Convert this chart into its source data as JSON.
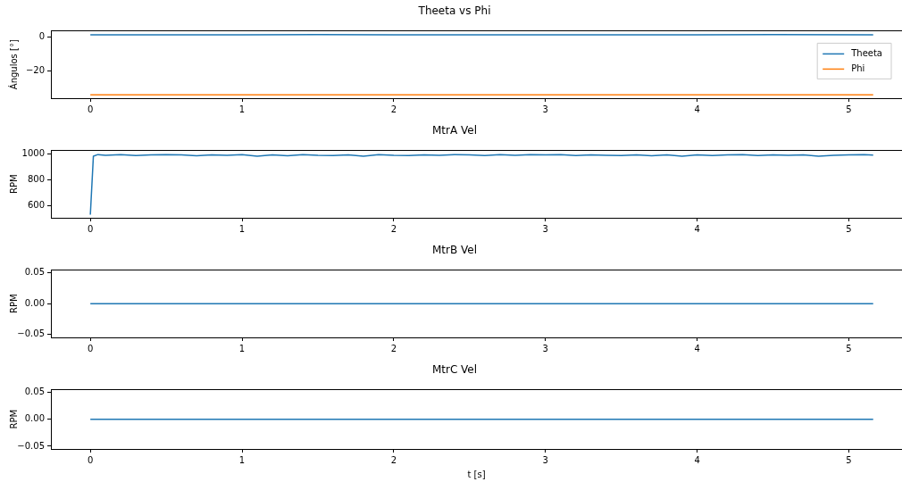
{
  "chart_data": [
    {
      "type": "line",
      "title": "Theeta vs Phi",
      "ylabel": "Ángulos [°]",
      "xlim": [
        -0.26,
        5.35
      ],
      "xticks": [
        0,
        1,
        2,
        3,
        4,
        5
      ],
      "ylim": [
        -36.6,
        3.9
      ],
      "yticks": [
        0,
        {
          "value": -20,
          "label": "−20"
        }
      ],
      "legend": "top right",
      "grid": false,
      "series": [
        {
          "name": "Theeta",
          "color": "#1f77b4",
          "x": [
            0,
            0.5,
            1,
            1.5,
            2,
            2.5,
            3,
            3.5,
            4,
            4.5,
            5.16
          ],
          "values": [
            1.5,
            1.4,
            1.5,
            1.6,
            1.5,
            1.5,
            1.5,
            1.4,
            1.5,
            1.6,
            1.5
          ]
        },
        {
          "name": "Phi",
          "color": "#ff7f0e",
          "x": [
            0,
            5.16
          ],
          "values": [
            -34.6,
            -34.6
          ]
        }
      ]
    },
    {
      "type": "line",
      "title": "MtrA Vel",
      "ylabel": "RPM",
      "xlim": [
        -0.26,
        5.35
      ],
      "xticks": [
        0,
        1,
        2,
        3,
        4,
        5
      ],
      "ylim": [
        506,
        1031
      ],
      "yticks": [
        600,
        800,
        1000
      ],
      "grid": false,
      "series": [
        {
          "color": "#1f77b4",
          "x": [
            0,
            0.02,
            0.05,
            0.1,
            0.2,
            0.3,
            0.4,
            0.5,
            0.6,
            0.7,
            0.8,
            0.9,
            1,
            1.1,
            1.2,
            1.3,
            1.4,
            1.5,
            1.6,
            1.7,
            1.8,
            1.9,
            2,
            2.1,
            2.2,
            2.3,
            2.4,
            2.5,
            2.6,
            2.7,
            2.8,
            2.9,
            3,
            3.1,
            3.2,
            3.3,
            3.4,
            3.5,
            3.6,
            3.7,
            3.8,
            3.9,
            4,
            4.1,
            4.2,
            4.3,
            4.4,
            4.5,
            4.6,
            4.7,
            4.8,
            4.9,
            5,
            5.1,
            5.16
          ],
          "values": [
            530,
            985,
            998,
            992,
            998,
            990,
            995,
            998,
            995,
            988,
            996,
            992,
            998,
            985,
            996,
            988,
            998,
            992,
            990,
            996,
            985,
            998,
            992,
            990,
            996,
            992,
            998,
            996,
            990,
            998,
            992,
            998,
            995,
            998,
            990,
            995,
            992,
            990,
            996,
            988,
            995,
            985,
            996,
            990,
            995,
            998,
            990,
            996,
            992,
            995,
            986,
            992,
            996,
            998,
            993
          ]
        }
      ]
    },
    {
      "type": "line",
      "title": "MtrB Vel",
      "ylabel": "RPM",
      "xlim": [
        -0.26,
        5.35
      ],
      "xticks": [
        0,
        1,
        2,
        3,
        4,
        5
      ],
      "ylim": [
        -0.055,
        0.055
      ],
      "yticks": [
        {
          "value": -0.05,
          "label": "−0.05"
        },
        {
          "value": 0,
          "label": "0.00"
        },
        0.05
      ],
      "grid": false,
      "series": [
        {
          "color": "#1f77b4",
          "x": [
            0,
            5.16
          ],
          "values": [
            0,
            0
          ]
        }
      ]
    },
    {
      "type": "line",
      "title": "MtrC Vel",
      "ylabel": "RPM",
      "xlabel": "t [s]",
      "xlim": [
        -0.26,
        5.35
      ],
      "xticks": [
        0,
        1,
        2,
        3,
        4,
        5
      ],
      "ylim": [
        -0.055,
        0.055
      ],
      "yticks": [
        {
          "value": -0.05,
          "label": "−0.05"
        },
        {
          "value": 0,
          "label": "0.00"
        },
        0.05
      ],
      "grid": false,
      "series": [
        {
          "color": "#1f77b4",
          "x": [
            0,
            5.16
          ],
          "values": [
            0,
            0
          ]
        }
      ]
    }
  ]
}
